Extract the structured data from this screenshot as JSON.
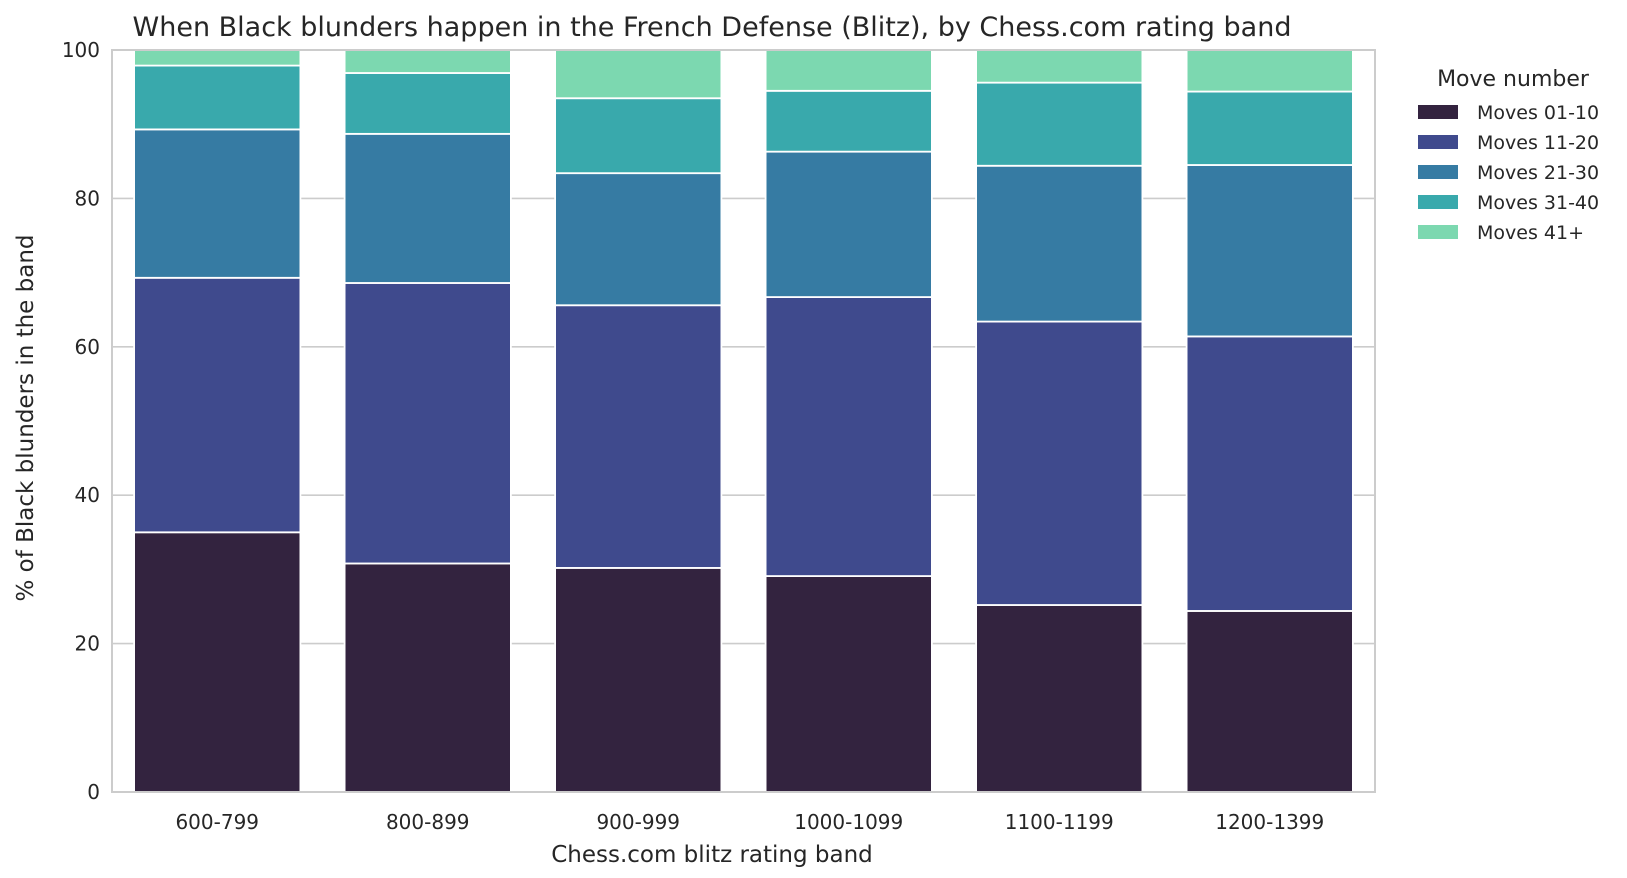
{
  "chart_data": {
    "type": "bar",
    "stacked": true,
    "title": "When Black blunders happen in the French Defense (Blitz), by Chess.com rating band",
    "xlabel": "Chess.com blitz rating band",
    "ylabel": "% of Black blunders in the band",
    "ylim": [
      0,
      100
    ],
    "yticks": [
      0,
      20,
      40,
      60,
      80,
      100
    ],
    "grid": true,
    "legend": {
      "title": "Move number",
      "placement": "outside-right"
    },
    "categories": [
      "600-799",
      "800-899",
      "900-999",
      "1000-1099",
      "1100-1199",
      "1200-1399"
    ],
    "series": [
      {
        "name": "Moves 01-10",
        "color": "#33233f",
        "values": [
          35.0,
          30.8,
          30.2,
          29.1,
          25.2,
          24.4
        ]
      },
      {
        "name": "Moves 11-20",
        "color": "#3f4a8d",
        "values": [
          34.3,
          37.8,
          35.4,
          37.6,
          38.2,
          37.0
        ]
      },
      {
        "name": "Moves 21-30",
        "color": "#367ba3",
        "values": [
          20.0,
          20.1,
          17.8,
          19.6,
          21.0,
          23.1
        ]
      },
      {
        "name": "Moves 31-40",
        "color": "#39a9ac",
        "values": [
          8.6,
          8.2,
          10.1,
          8.2,
          11.2,
          9.9
        ]
      },
      {
        "name": "Moves 41+",
        "color": "#7cd8b0",
        "values": [
          2.1,
          3.1,
          6.5,
          5.5,
          4.4,
          5.6
        ]
      }
    ]
  }
}
